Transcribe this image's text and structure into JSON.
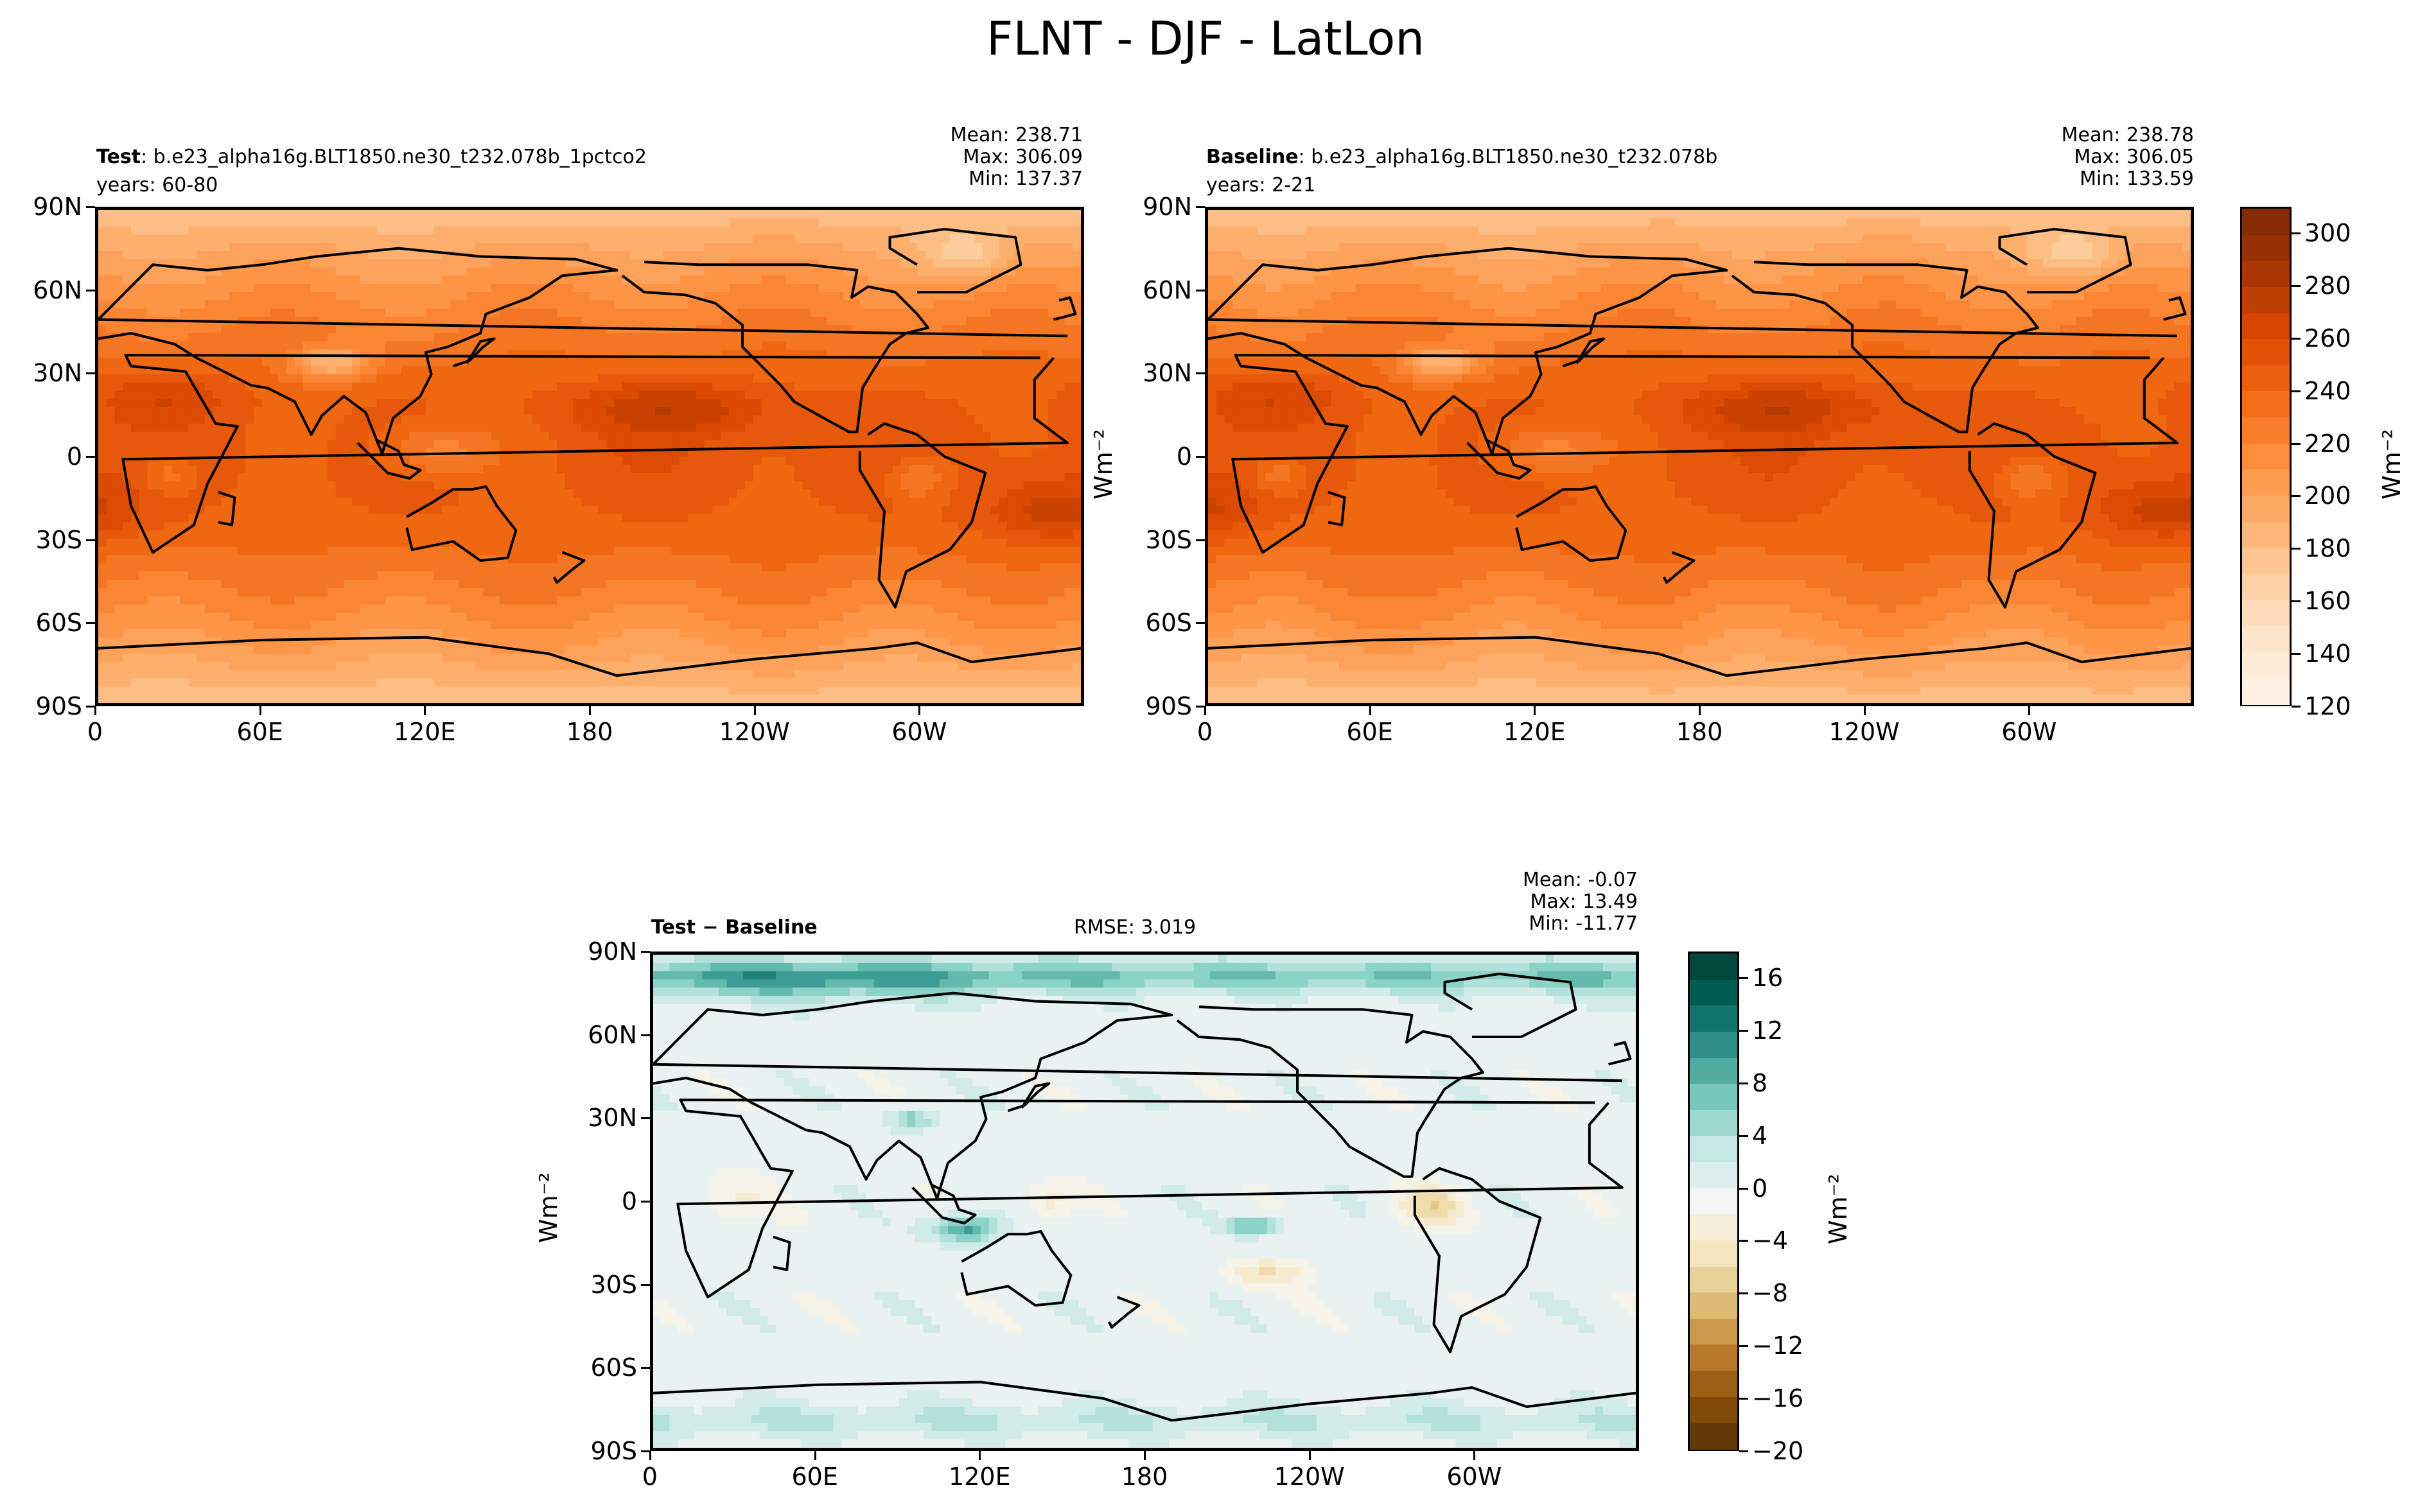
{
  "figure": {
    "title": "FLNT - DJF - LatLon"
  },
  "panels": {
    "test": {
      "label_bold": "Test",
      "label_rest": ": b.e23_alpha16g.BLT1850.ne30_t232.078b_1pctco2",
      "years": "years: 60-80",
      "mean": "Mean: 238.71",
      "max": "Max: 306.09",
      "min": "Min: 137.37"
    },
    "baseline": {
      "label_bold": "Baseline",
      "label_rest": ": b.e23_alpha16g.BLT1850.ne30_t232.078b",
      "years": "years: 2-21",
      "mean": "Mean: 238.78",
      "max": "Max: 306.05",
      "min": "Min: 133.59"
    },
    "diff": {
      "label_a": "Test",
      "label_sep": " − ",
      "label_b": "Baseline",
      "rmse": "RMSE: 3.019",
      "mean": "Mean: -0.07",
      "max": "Max: 13.49",
      "min": "Min: -11.77"
    }
  },
  "units": "Wm⁻²",
  "chart_data": [
    {
      "type": "heatmap",
      "name": "Test",
      "x_ticks": [
        "0",
        "60E",
        "120E",
        "180",
        "120W",
        "60W"
      ],
      "y_ticks": [
        "90N",
        "60N",
        "30N",
        "0",
        "30S",
        "60S",
        "90S"
      ],
      "colorbar": {
        "min": 120,
        "max": 310,
        "ticks": [
          "300",
          "280",
          "260",
          "240",
          "220",
          "200",
          "180",
          "160",
          "140",
          "120"
        ],
        "colormap": "Oranges"
      }
    },
    {
      "type": "heatmap",
      "name": "Baseline",
      "x_ticks": [
        "0",
        "60E",
        "120E",
        "180",
        "120W",
        "60W"
      ],
      "y_ticks": [
        "90N",
        "60N",
        "30N",
        "0",
        "30S",
        "60S",
        "90S"
      ],
      "colorbar": {
        "min": 120,
        "max": 310,
        "ticks": [
          "300",
          "280",
          "260",
          "240",
          "220",
          "200",
          "180",
          "160",
          "140",
          "120"
        ],
        "colormap": "Oranges"
      }
    },
    {
      "type": "heatmap",
      "name": "Test - Baseline",
      "x_ticks": [
        "0",
        "60E",
        "120E",
        "180",
        "120W",
        "60W"
      ],
      "y_ticks": [
        "90N",
        "60N",
        "30N",
        "0",
        "30S",
        "60S",
        "90S"
      ],
      "colorbar": {
        "min": -20,
        "max": 18,
        "ticks": [
          "16",
          "12",
          "8",
          "4",
          "0",
          "−4",
          "−8",
          "−12",
          "−16",
          "−20"
        ],
        "colormap": "BrBG"
      }
    }
  ],
  "colors": {
    "oranges": [
      "#fff5eb",
      "#fee6ce",
      "#fdd0a2",
      "#fdae6b",
      "#fd8d3c",
      "#f16913",
      "#d94801",
      "#a63603",
      "#7f2704"
    ],
    "brbg": [
      "#543005",
      "#8c510a",
      "#bf812d",
      "#dfc27d",
      "#f6e8c3",
      "#f5f5f5",
      "#c7eae5",
      "#80cdc1",
      "#35978f",
      "#01665e",
      "#003c30"
    ]
  }
}
